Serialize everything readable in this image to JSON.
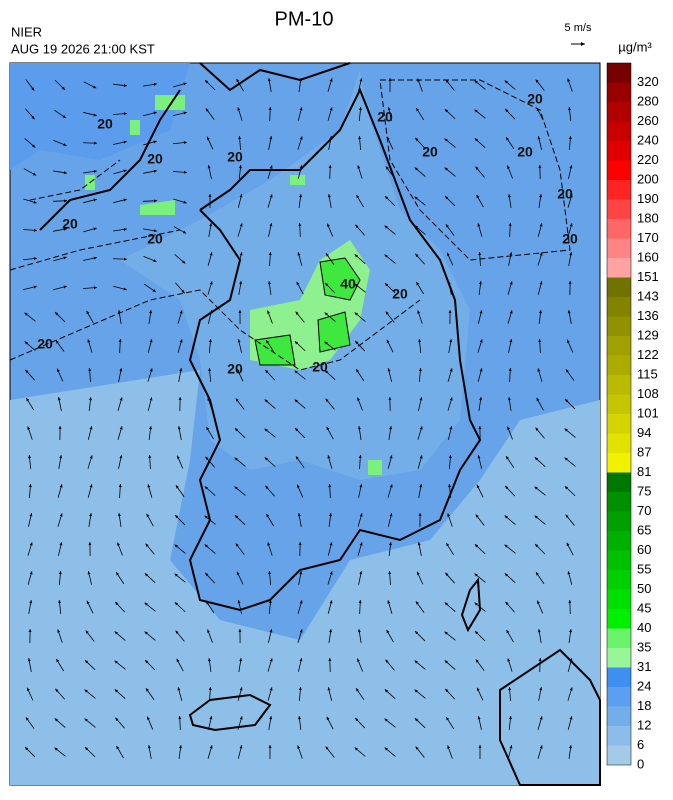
{
  "header": {
    "title": "PM-10",
    "agency": "NIER",
    "datetime": "AUG 19 2026 21:00 KST",
    "wind_scale": "5 m/s"
  },
  "colorbar": {
    "unit": "µg/m³",
    "levels": [
      0,
      6,
      12,
      18,
      24,
      31,
      35,
      40,
      45,
      50,
      55,
      60,
      65,
      70,
      75,
      81,
      87,
      94,
      101,
      108,
      115,
      122,
      129,
      136,
      143,
      151,
      160,
      170,
      180,
      190,
      200,
      220,
      240,
      260,
      280,
      320
    ],
    "colors": [
      "#a3cbe8",
      "#8cbdea",
      "#74aeea",
      "#5c9ff0",
      "#3f8ef2",
      "#98f598",
      "#6af26a",
      "#00f000",
      "#00e000",
      "#00d000",
      "#00c000",
      "#00b000",
      "#00a000",
      "#009000",
      "#007800",
      "#f2f200",
      "#e2e200",
      "#d4d400",
      "#c6c600",
      "#baba00",
      "#acac00",
      "#a0a000",
      "#929200",
      "#838300",
      "#727200",
      "#ffa2a2",
      "#ff8484",
      "#ff6666",
      "#ff4444",
      "#ff2424",
      "#ff0000",
      "#e00000",
      "#c80000",
      "#b00000",
      "#980000",
      "#740000"
    ]
  },
  "contour_labels": [
    "20",
    "20",
    "20",
    "20",
    "20",
    "20",
    "20",
    "20",
    "20",
    "20",
    "20",
    "20",
    "40",
    "20",
    "20",
    "20"
  ]
}
